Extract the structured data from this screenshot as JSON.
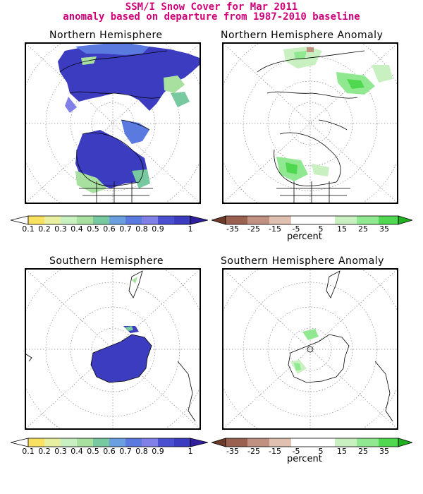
{
  "title_line1": "SSM/I Snow Cover for Mar 2011",
  "title_line2": "anomaly based on departure from 1987-2010 baseline",
  "panels": {
    "nh": "Northern Hemisphere",
    "nh_anom": "Northern Hemisphere Anomaly",
    "sh": "Southern Hemisphere",
    "sh_anom": "Southern Hemisphere Anomaly"
  },
  "cover_scale": {
    "ticks": [
      "0.1",
      "0.2",
      "0.3",
      "0.4",
      "0.5",
      "0.6",
      "0.7",
      "0.8",
      "0.9",
      "1"
    ],
    "colors": [
      "#ffffff",
      "#f8e060",
      "#e6f0a0",
      "#a8e0a0",
      "#78c8a0",
      "#6aa0e0",
      "#5a7ae0",
      "#4a50d0",
      "#8080e8",
      "#3c3cc0",
      "#3020a0"
    ]
  },
  "anom_scale": {
    "ticks": [
      "-35",
      "-25",
      "-15",
      "-5",
      "5",
      "15",
      "25",
      "35"
    ],
    "unit": "percent",
    "colors": [
      "#6e3a2a",
      "#9a6050",
      "#c09080",
      "#e0c0b0",
      "#ffffff",
      "#ffffff",
      "#c8f0c0",
      "#90e890",
      "#50d850",
      "#20b020"
    ]
  },
  "colors": {
    "title": "#d0007a",
    "snow_high": "#3c3cc0",
    "snow_mid": "#5a7ae0",
    "snow_low": "#a8e0a0",
    "anom_pos": "#90e890"
  }
}
